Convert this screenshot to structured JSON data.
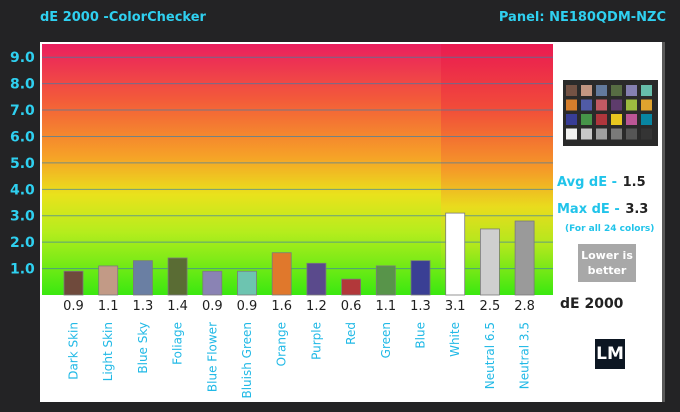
{
  "header": {
    "title": "dE 2000 -ColorChecker",
    "panel": "Panel: NE180QDM-NZC"
  },
  "stats": {
    "avg_label": "Avg dE -",
    "avg_value": "1.5",
    "max_label": "Max dE -",
    "max_value": "3.3",
    "note": "(For all 24 colors)",
    "lower_line1": "Lower is",
    "lower_line2": "better",
    "unit": "dE 2000"
  },
  "logo": {
    "text": "LM"
  },
  "chart_data": {
    "type": "bar",
    "title": "dE 2000 -ColorChecker",
    "xlabel": "",
    "ylabel": "",
    "ylim": [
      0,
      9.5
    ],
    "yticks": [
      1.0,
      2.0,
      3.0,
      4.0,
      5.0,
      6.0,
      7.0,
      8.0,
      9.0
    ],
    "ytick_labels": [
      "1.0",
      "2.0",
      "3.0",
      "4.0",
      "5.0",
      "6.0",
      "7.0",
      "8.0",
      "9.0"
    ],
    "grid": true,
    "categories": [
      "Dark Skin",
      "Light Skin",
      "Blue Sky",
      "Foliage",
      "Blue Flower",
      "Bluish Green",
      "Orange",
      "Purple",
      "Red",
      "Green",
      "Blue",
      "White",
      "Neutral 6.5",
      "Neutral 3.5"
    ],
    "values": [
      0.9,
      1.1,
      1.3,
      1.4,
      0.9,
      0.9,
      1.6,
      1.2,
      0.6,
      1.1,
      1.3,
      3.1,
      2.5,
      2.8
    ],
    "value_labels": [
      "0.9",
      "1.1",
      "1.3",
      "1.4",
      "0.9",
      "0.9",
      "1.6",
      "1.2",
      "0.6",
      "1.1",
      "1.3",
      "3.1",
      "2.5",
      "2.8"
    ],
    "colors": [
      "#6f4a3c",
      "#c29a86",
      "#6a7fa3",
      "#5a6c34",
      "#8a83b4",
      "#6dc4b0",
      "#e0782c",
      "#5a4a8c",
      "#b2383a",
      "#58944a",
      "#3a3f94",
      "#ffffff",
      "#cfcfcf",
      "#9a9a9a"
    ],
    "legend": "none"
  },
  "swatches": [
    "#735244",
    "#c29682",
    "#627a9d",
    "#576c43",
    "#8580b1",
    "#67bdaa",
    "#d67e2c",
    "#505ba6",
    "#c15a63",
    "#5e3c6c",
    "#9dbc40",
    "#e0a32e",
    "#383d96",
    "#469449",
    "#af363c",
    "#e7c71f",
    "#bb5695",
    "#0885a1",
    "#f3f3f2",
    "#c8c8c8",
    "#a0a0a0",
    "#7a7a79",
    "#555555",
    "#343434"
  ]
}
